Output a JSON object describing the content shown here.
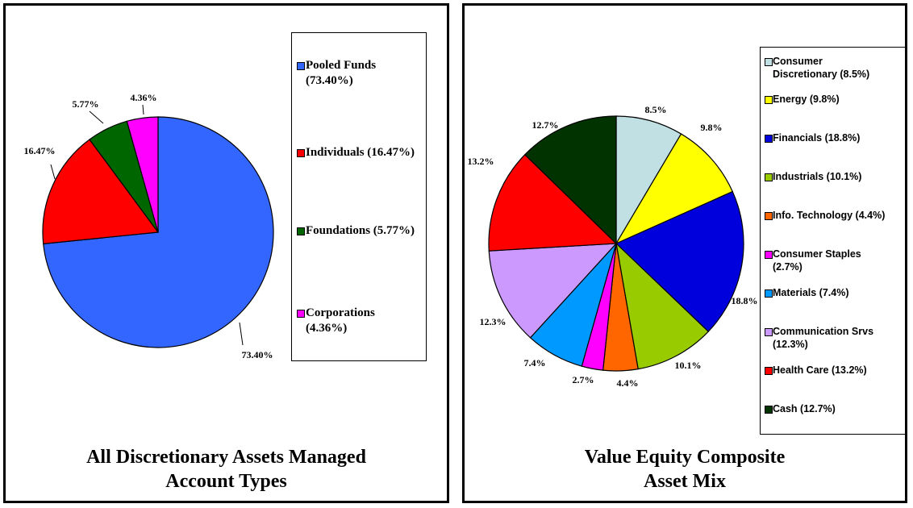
{
  "chart_data": [
    {
      "type": "pie",
      "title_line1": "All Discretionary Assets Managed",
      "title_line2": "Account Types",
      "slices": [
        {
          "label": "Pooled Funds (73.40%)",
          "value": 73.4,
          "data_label": "73.40%",
          "color": "#3366ff"
        },
        {
          "label": "Individuals (16.47%)",
          "value": 16.47,
          "data_label": "16.47%",
          "color": "#ff0000"
        },
        {
          "label": "Foundations (5.77%)",
          "value": 5.77,
          "data_label": "5.77%",
          "color": "#006600"
        },
        {
          "label": "Corporations (4.36%)",
          "value": 4.36,
          "data_label": "4.36%",
          "color": "#ff00ff"
        }
      ]
    },
    {
      "type": "pie",
      "title_line1": "Value Equity Composite",
      "title_line2": "Asset Mix",
      "slices": [
        {
          "label": "Consumer Discretionary (8.5%)",
          "value": 8.5,
          "data_label": "8.5%",
          "color": "#c0e0e4"
        },
        {
          "label": "Energy (9.8%)",
          "value": 9.8,
          "data_label": "9.8%",
          "color": "#ffff00"
        },
        {
          "label": "Financials (18.8%)",
          "value": 18.8,
          "data_label": "18.8%",
          "color": "#0000dd"
        },
        {
          "label": "Industrials  (10.1%)",
          "value": 10.1,
          "data_label": "10.1%",
          "color": "#99cc00"
        },
        {
          "label": "Info. Technology (4.4%)",
          "value": 4.4,
          "data_label": "4.4%",
          "color": "#ff6600"
        },
        {
          "label": "Consumer Staples (2.7%)",
          "value": 2.7,
          "data_label": "2.7%",
          "color": "#ff00ff"
        },
        {
          "label": "Materials (7.4%)",
          "value": 7.4,
          "data_label": "7.4%",
          "color": "#0099ff"
        },
        {
          "label": "Communication Srvs (12.3%)",
          "value": 12.3,
          "data_label": "12.3%",
          "color": "#cc99ff"
        },
        {
          "label": "Health Care (13.2%)",
          "value": 13.2,
          "data_label": "13.2%",
          "color": "#ff0000"
        },
        {
          "label": "Cash (12.7%)",
          "value": 12.7,
          "data_label": "12.7%",
          "color": "#003300"
        }
      ]
    }
  ]
}
